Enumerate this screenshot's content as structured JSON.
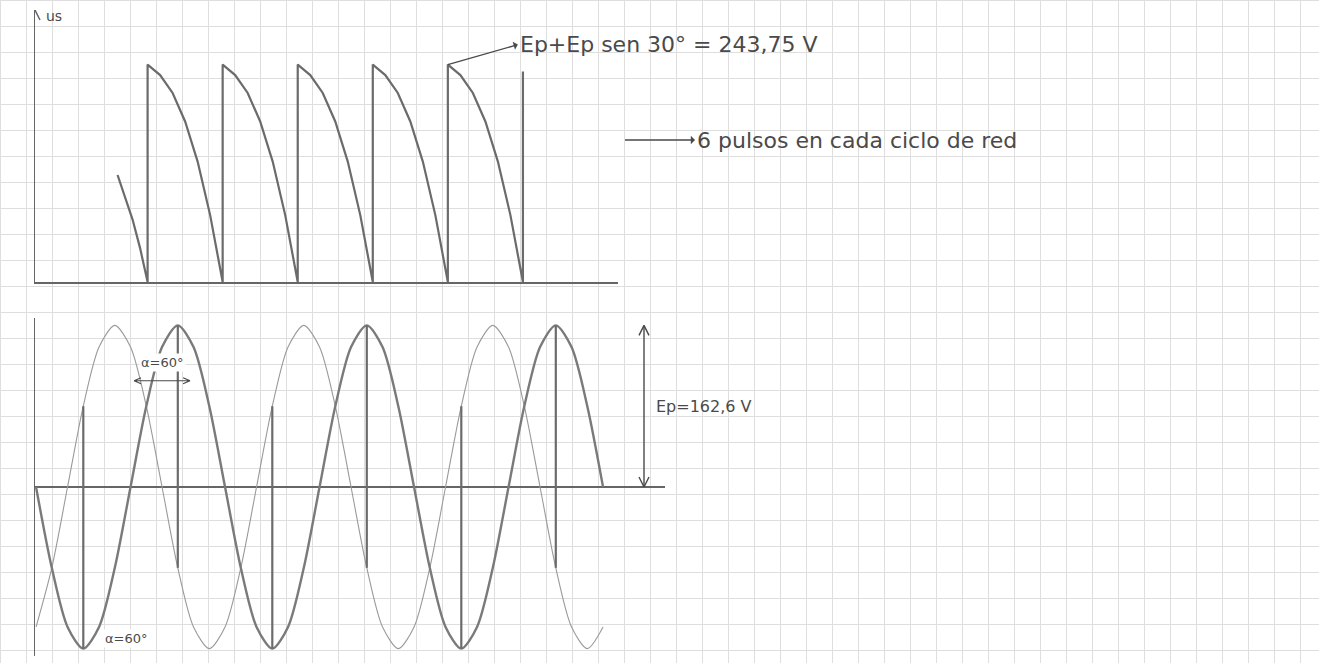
{
  "chart_data": [
    {
      "type": "line",
      "ylabel": "us",
      "xlim": [
        0,
        466
      ],
      "ylim": [
        0,
        305
      ],
      "tick_labels": false,
      "grid": true,
      "series": [
        {
          "color": "#6b6b6b",
          "x": [
            66,
            72,
            78,
            84,
            90,
            90,
            100,
            110,
            120,
            130,
            140,
            150,
            150,
            160,
            170,
            180,
            190,
            200,
            210,
            210,
            220,
            230,
            240,
            250,
            260,
            270,
            270,
            280,
            290,
            300,
            310,
            320,
            330,
            330,
            340,
            350,
            360,
            370,
            380,
            390,
            390
          ],
          "values": [
            120,
            95,
            70,
            38,
            0,
            243.75,
            232,
            212,
            180,
            135,
            75,
            0,
            243.75,
            232,
            212,
            180,
            135,
            75,
            0,
            243.75,
            232,
            212,
            180,
            135,
            75,
            0,
            243.75,
            232,
            212,
            180,
            135,
            75,
            0,
            243.75,
            232,
            212,
            180,
            135,
            75,
            0,
            236
          ]
        }
      ],
      "annotations": [
        {
          "text": "Ep+Ep sen 30° = 243,75 V",
          "x": 330,
          "y": 243.75
        },
        {
          "text": "6 pulsos en cada ciclo de red"
        }
      ]
    },
    {
      "type": "line",
      "xlim": [
        0,
        1200
      ],
      "ylim": [
        -170,
        170
      ],
      "tick_labels": false,
      "grid": true,
      "series": [
        {
          "color": "#9a9a9a",
          "x": [
            2,
            32,
            62,
            92,
            122,
            152,
            182,
            212,
            242,
            272,
            302,
            332,
            362,
            392,
            422,
            452,
            482,
            512,
            542,
            572,
            602,
            632,
            662,
            692,
            722,
            752,
            782,
            812,
            842,
            872,
            902,
            932,
            962,
            992,
            1022,
            1052,
            1082
          ],
          "values": [
            -140.8,
            -81.3,
            0,
            81.3,
            140.8,
            162.6,
            140.8,
            81.3,
            0,
            -81.3,
            -140.8,
            -162.6,
            -140.8,
            -81.3,
            0,
            81.3,
            140.8,
            162.6,
            140.8,
            81.3,
            0,
            -81.3,
            -140.8,
            -162.6,
            -140.8,
            -81.3,
            0,
            81.3,
            140.8,
            162.6,
            140.8,
            81.3,
            0,
            -81.3,
            -140.8,
            -162.6,
            -140.8
          ]
        },
        {
          "color": "#7a7a7a",
          "x": [
            2,
            32,
            62,
            92,
            122,
            152,
            182,
            212,
            242,
            272,
            302,
            332,
            362,
            392,
            422,
            452,
            482,
            512,
            542,
            572,
            602,
            632,
            662,
            692,
            722,
            752,
            782,
            812,
            842,
            872,
            902,
            932,
            962,
            992,
            1022,
            1052,
            1082
          ],
          "values": [
            0,
            -81.3,
            -140.8,
            -162.6,
            -140.8,
            -81.3,
            0,
            81.3,
            140.8,
            162.6,
            140.8,
            81.3,
            0,
            -81.3,
            -140.8,
            -162.6,
            -140.8,
            -81.3,
            0,
            81.3,
            140.8,
            162.6,
            140.8,
            81.3,
            0,
            -81.3,
            -140.8,
            -162.6,
            -140.8,
            -81.3,
            0,
            81.3,
            140.8,
            162.6,
            140.8,
            81.3,
            0
          ]
        },
        {
          "color": "#6b6b6b",
          "x": [
            92,
            92,
            null,
            272,
            272,
            null,
            452,
            452,
            null,
            632,
            632,
            null,
            812,
            812,
            null,
            992,
            992
          ],
          "values": [
            -162.6,
            81.3,
            null,
            -81.3,
            162.6,
            null,
            -162.6,
            81.3,
            null,
            -81.3,
            162.6,
            null,
            -162.6,
            81.3,
            null,
            -81.3,
            162.6
          ]
        }
      ],
      "annotations": [
        {
          "text": "α=60°",
          "x": 242,
          "y": 125
        },
        {
          "text": "α=60°",
          "x": 175,
          "y": -152
        },
        {
          "text": "Ep=162,6 V",
          "x": 1160,
          "y": 162.6
        }
      ]
    }
  ]
}
